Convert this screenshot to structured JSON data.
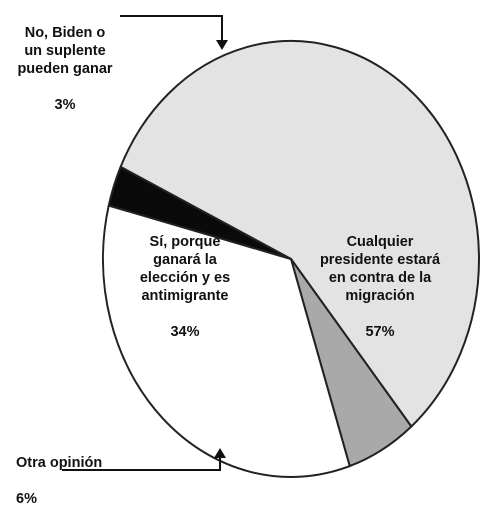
{
  "chart_data": {
    "type": "pie",
    "slices": [
      {
        "label": "Cualquier\npresidente estará\nen contra de la\nmigración",
        "value": 57,
        "value_label": "57%",
        "color": "#e3e3e3"
      },
      {
        "label": "Otra opinión",
        "value": 6,
        "value_label": "6%",
        "color": "#a9a9a9"
      },
      {
        "label": "Sí, porque\nganará la\nelección y es\nantimigrante",
        "value": 34,
        "value_label": "34%",
        "color": "#ffffff"
      },
      {
        "label": "No, Biden o\nun suplente\npueden ganar",
        "value": 3,
        "value_label": "3%",
        "color": "#0a0a0a"
      }
    ],
    "title": "",
    "legend": "none",
    "outline_color": "#222222"
  }
}
